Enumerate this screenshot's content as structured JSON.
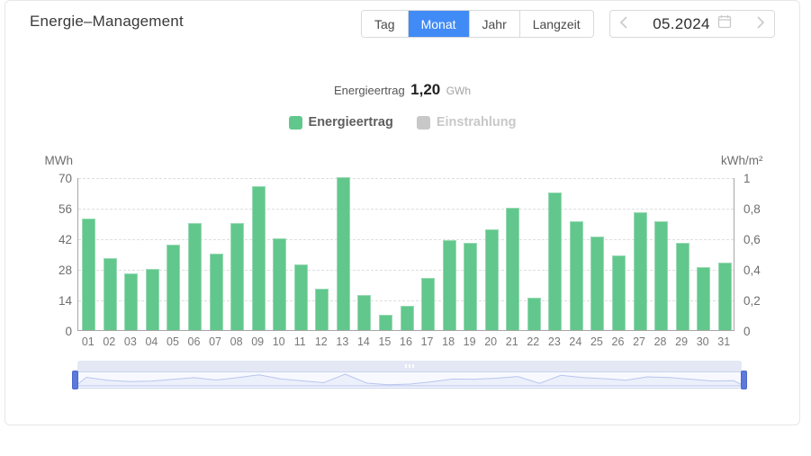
{
  "header": {
    "title": "Energie–Management",
    "period_tabs": [
      {
        "label": "Tag",
        "active": false
      },
      {
        "label": "Monat",
        "active": true
      },
      {
        "label": "Jahr",
        "active": false
      },
      {
        "label": "Langzeit",
        "active": false
      }
    ],
    "date_nav": {
      "value": "05.2024"
    }
  },
  "summary": {
    "label": "Energieertrag",
    "value": "1,20",
    "unit": "GWh"
  },
  "legend": [
    {
      "label": "Energieertrag",
      "color": "#62c78c",
      "text_color": "#5e5e5e",
      "active": true
    },
    {
      "label": "Einstrahlung",
      "color": "#c8c8c8",
      "text_color": "#c8c8c8",
      "active": false
    }
  ],
  "colors": {
    "accent_blue": "#418bf7",
    "bar_green": "#62c78c",
    "disabled_gray": "#c8c8c8",
    "slider_handle": "#5d79da"
  },
  "chart_data": {
    "type": "bar",
    "title": "Energieertrag 05.2024",
    "categories": [
      "01",
      "02",
      "03",
      "04",
      "05",
      "06",
      "07",
      "08",
      "09",
      "10",
      "11",
      "12",
      "13",
      "14",
      "15",
      "16",
      "17",
      "18",
      "19",
      "20",
      "21",
      "22",
      "23",
      "24",
      "25",
      "26",
      "27",
      "28",
      "29",
      "30",
      "31"
    ],
    "series": [
      {
        "name": "Energieertrag",
        "unit": "MWh",
        "values": [
          51,
          33,
          26,
          28,
          39,
          49,
          35,
          49,
          66,
          42,
          30,
          19,
          70,
          16,
          7,
          11,
          24,
          41,
          40,
          46,
          56,
          15,
          63,
          50,
          43,
          34,
          54,
          50,
          40,
          29,
          31
        ]
      },
      {
        "name": "Einstrahlung",
        "unit": "kWh/m²",
        "values": [],
        "hidden": true
      }
    ],
    "left_axis": {
      "label": "MWh",
      "ticks": [
        "0",
        "14",
        "28",
        "42",
        "56",
        "70"
      ],
      "min": 0,
      "max": 70
    },
    "right_axis": {
      "label": "kWh/m²",
      "ticks": [
        "0",
        "0,2",
        "0,4",
        "0,6",
        "0,8",
        "1"
      ],
      "min": 0,
      "max": 1
    },
    "grid": true,
    "grid_style": "dashed",
    "legend_position": "top"
  }
}
